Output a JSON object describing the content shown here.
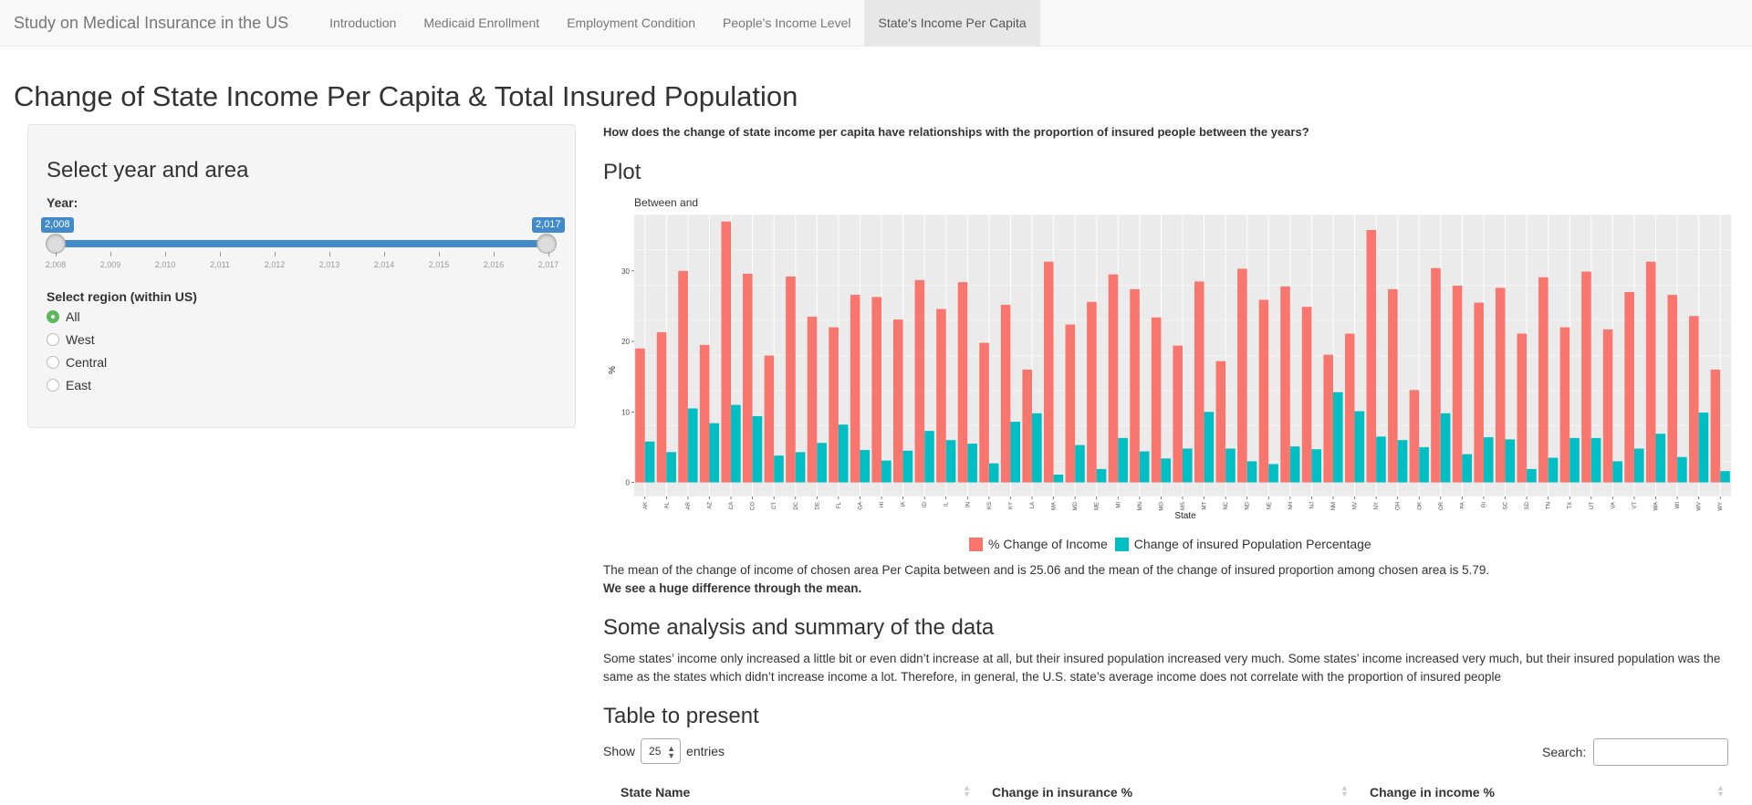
{
  "navbar": {
    "brand": "Study on Medical Insurance in the US",
    "tabs": [
      "Introduction",
      "Medicaid Enrollment",
      "Employment Condition",
      "People's Income Level",
      "State's Income Per Capita"
    ],
    "active_tab": "State's Income Per Capita"
  },
  "page_title": "Change of State Income Per Capita & Total Insured Population",
  "sidebar": {
    "title": "Select year and area",
    "year_label": "Year:",
    "slider": {
      "min": 2008,
      "max": 2017,
      "from_label": "2,008",
      "to_label": "2,017",
      "ticks": [
        "2,008",
        "2,009",
        "2,010",
        "2,011",
        "2,012",
        "2,013",
        "2,014",
        "2,015",
        "2,016",
        "2,017"
      ]
    },
    "region_label": "Select region (within US)",
    "regions": [
      "All",
      "West",
      "Central",
      "East"
    ],
    "selected_region": "All"
  },
  "main": {
    "question": "How does the change of state income per capita have relationships with the proportion of insured people between the years?",
    "plot_heading": "Plot",
    "mean_text": "The mean of the change of income of chosen area Per Capita between and is 25.06 and the mean of the change of insured proportion among chosen area is 5.79.",
    "mean_bold": "We see a huge difference through the mean.",
    "analysis_heading": "Some analysis and summary of the data",
    "analysis_text": "Some states’ income only increased a little bit or even didn’t increase at all, but their insured population increased very much. Some states’ income increased very much, but their insured population was the same as the states which didn’t increase income a lot. Therefore, in general, the U.S. state’s average income does not correlate with the proportion of insured people",
    "table_heading": "Table to present",
    "show_label": "Show",
    "entries_value": "25",
    "entries_label": "entries",
    "search_label": "Search:",
    "columns": [
      "State Name",
      "Change in insurance %",
      "Change in income %"
    ]
  },
  "chart_data": {
    "type": "bar",
    "title": "Between  and",
    "xlabel": "State",
    "ylabel": "%",
    "ylim": [
      -2,
      38
    ],
    "yticks": [
      0,
      10,
      20,
      30
    ],
    "grid": true,
    "legend": "bottom",
    "colors": {
      "income": "#f8766d",
      "insured": "#00bfc4",
      "panel": "#ebebeb"
    },
    "categories": [
      "AK",
      "AL",
      "AR",
      "AZ",
      "CA",
      "CO",
      "CT",
      "DC",
      "DE",
      "FL",
      "GA",
      "HI",
      "IA",
      "ID",
      "IL",
      "IN",
      "KS",
      "KY",
      "LA",
      "MA",
      "MD",
      "ME",
      "MI",
      "MN",
      "MO",
      "MS",
      "MT",
      "NC",
      "ND",
      "NE",
      "NH",
      "NJ",
      "NM",
      "NV",
      "NY",
      "OH",
      "OK",
      "OR",
      "PA",
      "RI",
      "SC",
      "SD",
      "TN",
      "TX",
      "UT",
      "VA",
      "VT",
      "WA",
      "WI",
      "WV",
      "WY"
    ],
    "series": [
      {
        "name": "% Change of Income",
        "values": [
          19.0,
          21.3,
          30.0,
          19.5,
          37.0,
          29.6,
          18.0,
          29.2,
          23.5,
          22.0,
          26.6,
          26.3,
          23.1,
          28.7,
          24.6,
          28.4,
          19.8,
          25.2,
          16.0,
          31.3,
          22.4,
          25.6,
          29.5,
          27.4,
          23.4,
          19.4,
          28.5,
          17.2,
          30.3,
          25.9,
          27.8,
          24.9,
          18.1,
          21.1,
          35.8,
          27.4,
          13.1,
          30.4,
          27.9,
          25.5,
          27.6,
          21.1,
          29.1,
          22.0,
          29.9,
          21.7,
          27.0,
          31.3,
          26.6,
          23.6,
          16.0
        ]
      },
      {
        "name": "Change of insured Population Percentage",
        "values": [
          5.8,
          4.3,
          10.5,
          8.4,
          11.0,
          9.4,
          3.8,
          4.3,
          5.6,
          8.2,
          4.6,
          3.1,
          4.5,
          7.3,
          6.0,
          5.5,
          2.7,
          8.6,
          9.8,
          1.1,
          5.3,
          1.9,
          6.3,
          4.4,
          3.4,
          4.8,
          10.0,
          4.8,
          3.0,
          2.6,
          5.1,
          4.7,
          12.8,
          10.1,
          6.5,
          6.0,
          5.0,
          9.8,
          4.0,
          6.4,
          6.1,
          1.9,
          3.5,
          6.3,
          6.3,
          3.0,
          4.8,
          6.9,
          3.6,
          9.9,
          1.6
        ]
      }
    ]
  }
}
